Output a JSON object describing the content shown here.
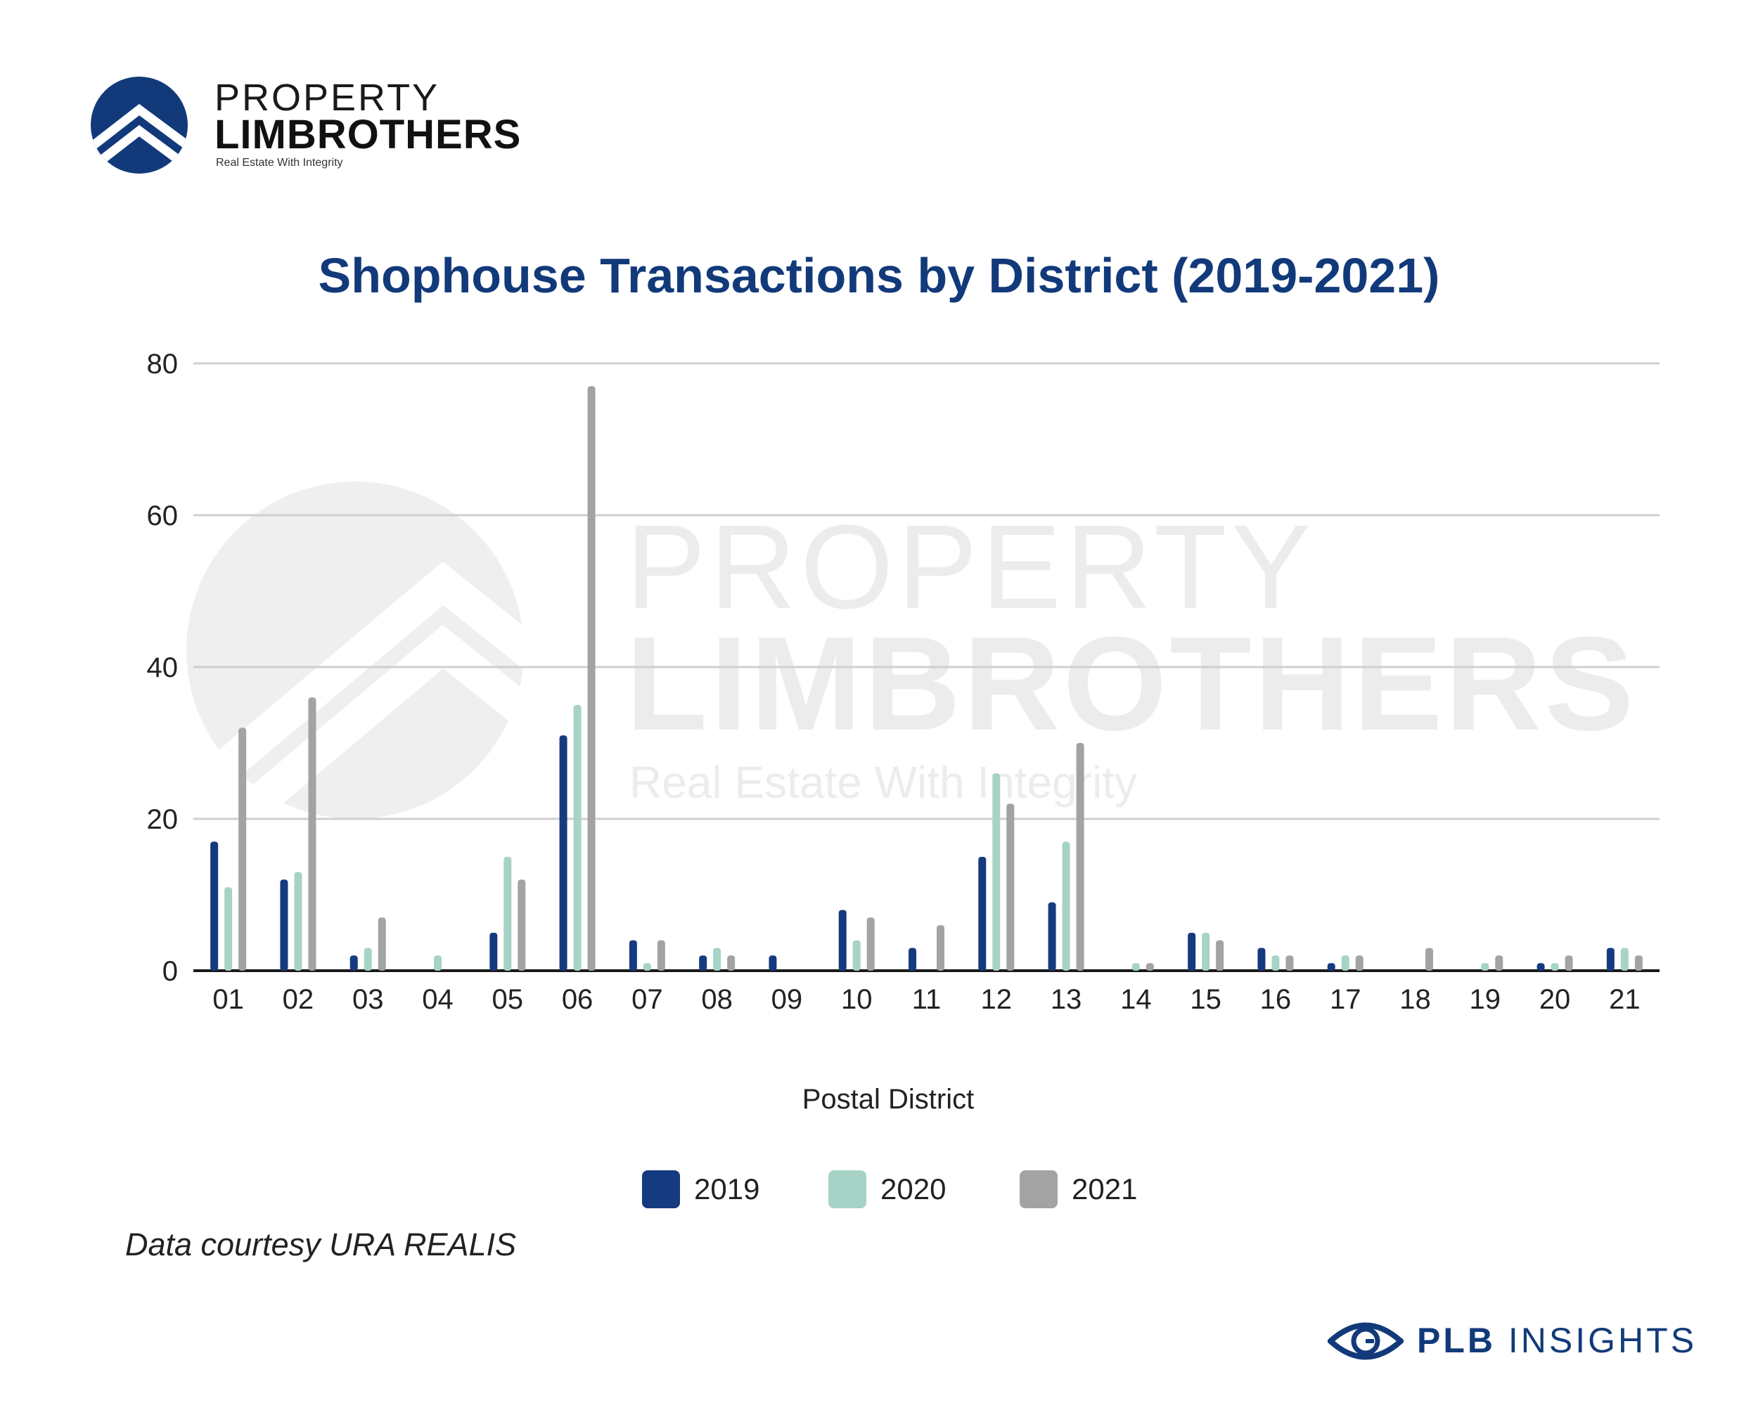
{
  "brand": {
    "logo_line1": "PROPERTY",
    "logo_line2": "LIMBROTHERS",
    "tagline": "Real Estate With Integrity",
    "footer_logo_bold": "PLB",
    "footer_logo_light": "INSIGHTS",
    "primary_color": "#123a7a"
  },
  "watermark": {
    "line1": "PROPERTY",
    "line2": "LIMBROTHERS",
    "line3": "Real Estate With Integrity"
  },
  "footnote": "Data courtesy URA REALIS",
  "chart_data": {
    "type": "bar",
    "title": "Shophouse Transactions by District (2019-2021)",
    "xlabel": "Postal District",
    "ylabel": "",
    "ylim": [
      0,
      80
    ],
    "yticks": [
      0,
      20,
      40,
      60,
      80
    ],
    "grid": true,
    "legend_position": "bottom",
    "categories": [
      "01",
      "02",
      "03",
      "04",
      "05",
      "06",
      "07",
      "08",
      "09",
      "10",
      "11",
      "12",
      "13",
      "14",
      "15",
      "16",
      "17",
      "18",
      "19",
      "20",
      "21"
    ],
    "series": [
      {
        "name": "2019",
        "color": "#163a80",
        "values": [
          17,
          12,
          2,
          0,
          5,
          31,
          4,
          2,
          2,
          8,
          3,
          15,
          9,
          0,
          5,
          3,
          1,
          0,
          0,
          1,
          3
        ]
      },
      {
        "name": "2020",
        "color": "#a6d3c6",
        "values": [
          11,
          13,
          3,
          2,
          15,
          35,
          1,
          3,
          0,
          4,
          0,
          26,
          17,
          1,
          5,
          2,
          2,
          0,
          1,
          1,
          3
        ]
      },
      {
        "name": "2021",
        "color": "#a3a3a3",
        "values": [
          32,
          36,
          7,
          0,
          12,
          77,
          4,
          2,
          0,
          7,
          6,
          22,
          30,
          1,
          4,
          2,
          2,
          3,
          2,
          2,
          2
        ]
      }
    ]
  }
}
